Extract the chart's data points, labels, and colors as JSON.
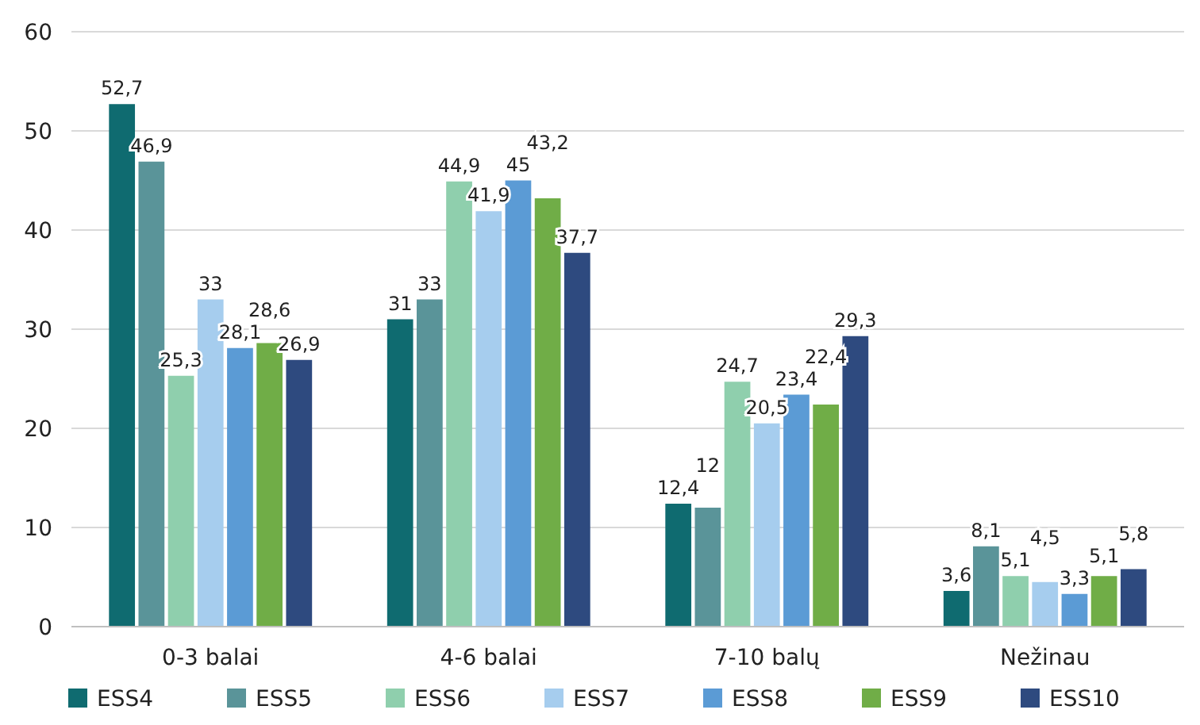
{
  "chart_data": {
    "type": "bar",
    "categories": [
      "0-3 balai",
      "4-6 balai",
      "7-10 balų",
      "Nežinau"
    ],
    "series": [
      {
        "name": "ESS4",
        "color": "#0f6b70",
        "values": [
          52.7,
          31,
          12.4,
          3.6
        ],
        "value_labels": [
          "52,7",
          "31",
          "12,4",
          "3,6"
        ]
      },
      {
        "name": "ESS5",
        "color": "#5a9499",
        "values": [
          46.9,
          33,
          12,
          8.1
        ],
        "value_labels": [
          "46,9",
          "33",
          "12",
          "8,1"
        ]
      },
      {
        "name": "ESS6",
        "color": "#8fcfad",
        "values": [
          25.3,
          44.9,
          24.7,
          5.1
        ],
        "value_labels": [
          "25,3",
          "44,9",
          "24,7",
          "5,1"
        ]
      },
      {
        "name": "ESS7",
        "color": "#a6cdee",
        "values": [
          33,
          41.9,
          20.5,
          4.5
        ],
        "value_labels": [
          "33",
          "41,9",
          "20,5",
          "4,5"
        ]
      },
      {
        "name": "ESS8",
        "color": "#5b9bd5",
        "values": [
          28.1,
          45,
          23.4,
          3.3
        ],
        "value_labels": [
          "28,1",
          "45",
          "23,4",
          "3,3"
        ]
      },
      {
        "name": "ESS9",
        "color": "#70ad47",
        "values": [
          28.6,
          43.2,
          22.4,
          5.1
        ],
        "value_labels": [
          "28,6",
          "43,2",
          "22,4",
          "5,1"
        ]
      },
      {
        "name": "ESS10",
        "color": "#2e4a7f",
        "values": [
          26.9,
          37.7,
          29.3,
          5.8
        ],
        "value_labels": [
          "26,9",
          "37,7",
          "29,3",
          "5,8"
        ]
      }
    ],
    "ylim": [
      0,
      60
    ],
    "yticks": [
      0,
      10,
      20,
      30,
      40,
      50,
      60
    ],
    "grid": "y",
    "legend": "bottom"
  }
}
